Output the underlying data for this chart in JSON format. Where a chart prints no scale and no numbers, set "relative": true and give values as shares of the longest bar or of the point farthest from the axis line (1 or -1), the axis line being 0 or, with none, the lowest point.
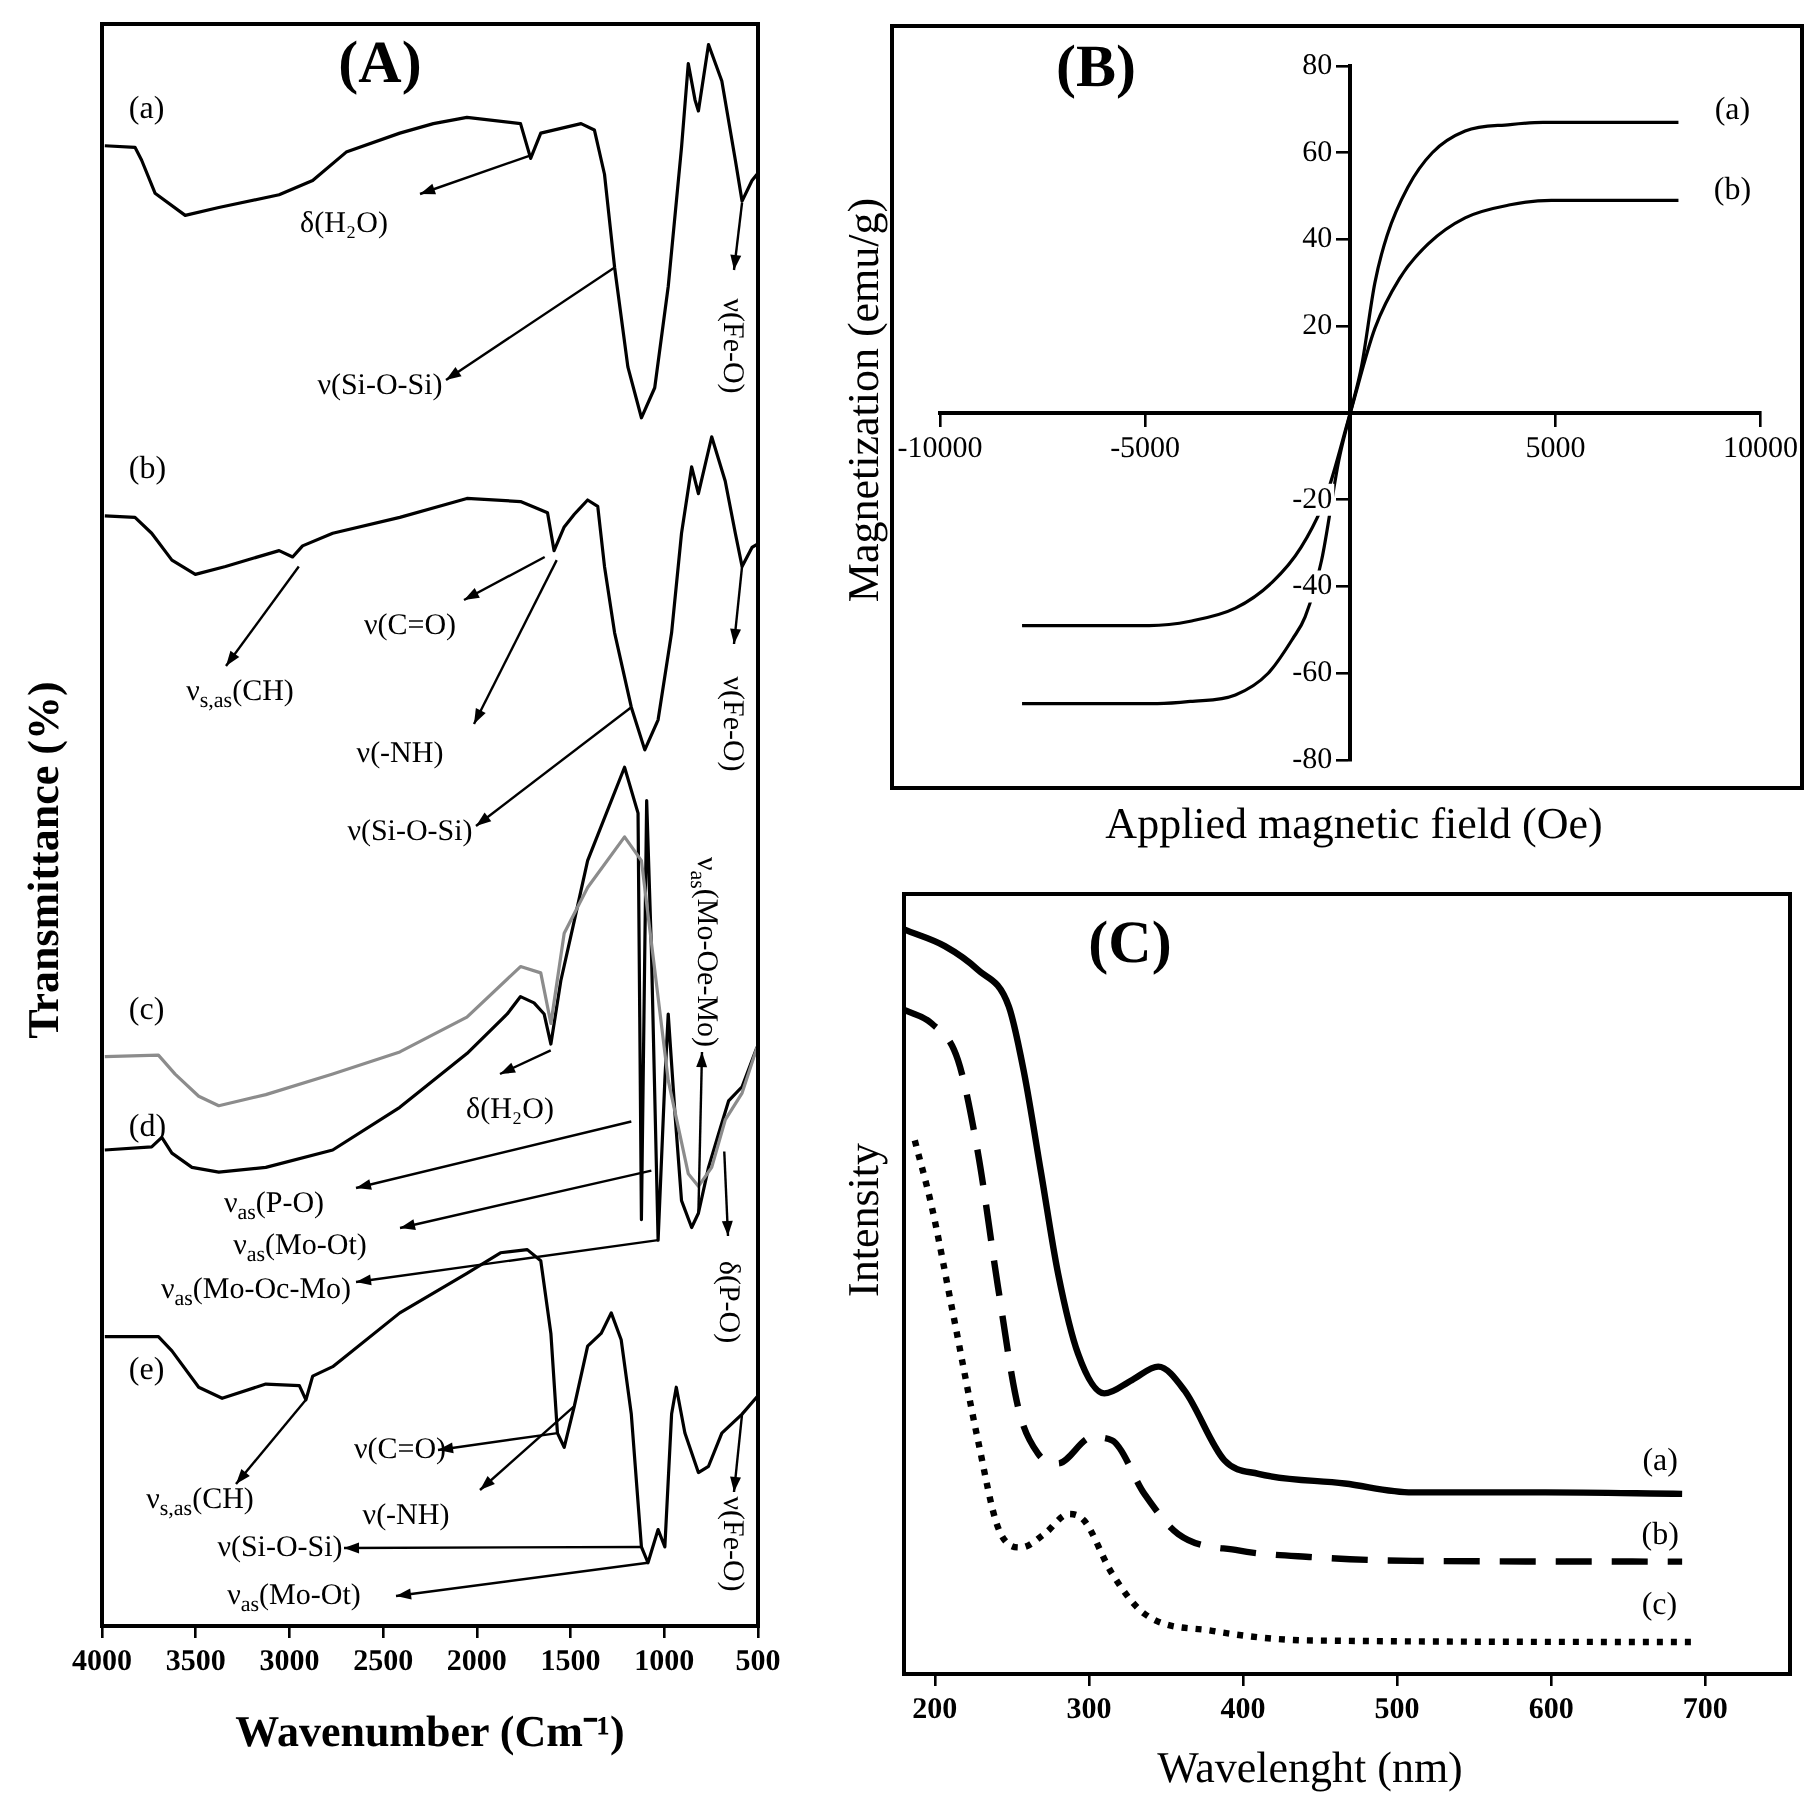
{
  "chart_data": [
    {
      "type": "line",
      "title": "(A)",
      "xlabel": "Wavenumber (Cm⁻¹)",
      "ylabel": "Transmittance (%)",
      "relative": true,
      "xlim": [
        4000,
        500
      ],
      "xticks": [
        4000,
        3500,
        3000,
        2500,
        2000,
        1500,
        1000,
        500
      ],
      "grid": false,
      "legend": false,
      "marker": "none",
      "series": [
        {
          "name": "(a)",
          "color": "#000000",
          "x": [
            3985,
            3824,
            3789,
            3717,
            3556,
            3377,
            3055,
            2876,
            2697,
            2411,
            2232,
            2053,
            1767,
            1713,
            1659,
            1444,
            1373,
            1319,
            1265,
            1194,
            1122,
            1051,
            979,
            908,
            872,
            836,
            818,
            764,
            693,
            621,
            585,
            532,
            505
          ],
          "values": [
            0.936,
            0.935,
            0.927,
            0.906,
            0.892,
            0.897,
            0.905,
            0.914,
            0.932,
            0.944,
            0.95,
            0.954,
            0.95,
            0.928,
            0.944,
            0.95,
            0.946,
            0.918,
            0.859,
            0.796,
            0.764,
            0.783,
            0.847,
            0.935,
            0.988,
            0.965,
            0.958,
            1.0,
            0.977,
            0.927,
            0.901,
            0.914,
            0.918
          ]
        },
        {
          "name": "(b)",
          "color": "#000000",
          "x": [
            3985,
            3824,
            3735,
            3627,
            3502,
            3341,
            3055,
            2983,
            2930,
            2769,
            2411,
            2053,
            1767,
            1623,
            1588,
            1534,
            1480,
            1409,
            1355,
            1319,
            1265,
            1176,
            1104,
            1033,
            961,
            908,
            854,
            818,
            747,
            675,
            621,
            585,
            532,
            505
          ],
          "values": [
            0.702,
            0.701,
            0.691,
            0.674,
            0.665,
            0.67,
            0.68,
            0.676,
            0.683,
            0.691,
            0.701,
            0.713,
            0.711,
            0.704,
            0.68,
            0.695,
            0.703,
            0.712,
            0.708,
            0.67,
            0.628,
            0.581,
            0.554,
            0.573,
            0.628,
            0.691,
            0.733,
            0.716,
            0.752,
            0.724,
            0.691,
            0.67,
            0.682,
            0.684
          ]
        },
        {
          "name": "(c)",
          "color": "#8c8c8c",
          "x": [
            3985,
            3699,
            3610,
            3484,
            3377,
            3126,
            2769,
            2411,
            2053,
            1767,
            1659,
            1605,
            1534,
            1409,
            1212,
            1122,
            979,
            872,
            818,
            747,
            675,
            585,
            505
          ],
          "values": [
            0.36,
            0.361,
            0.349,
            0.335,
            0.329,
            0.336,
            0.349,
            0.363,
            0.385,
            0.417,
            0.413,
            0.381,
            0.438,
            0.467,
            0.499,
            0.484,
            0.345,
            0.286,
            0.278,
            0.29,
            0.32,
            0.337,
            0.366
          ]
        },
        {
          "name": "(d)",
          "color": "#000000",
          "x": [
            3985,
            3735,
            3681,
            3627,
            3520,
            3377,
            3126,
            2769,
            2411,
            2053,
            1838,
            1767,
            1695,
            1641,
            1605,
            1552,
            1480,
            1409,
            1212,
            1140,
            1122,
            1094,
            1069,
            1033,
            997,
            979,
            943,
            908,
            854,
            818,
            764,
            711,
            657,
            585,
            505
          ],
          "values": [
            0.301,
            0.303,
            0.309,
            0.299,
            0.29,
            0.287,
            0.29,
            0.301,
            0.328,
            0.362,
            0.387,
            0.398,
            0.394,
            0.387,
            0.368,
            0.408,
            0.446,
            0.484,
            0.543,
            0.514,
            0.257,
            0.522,
            0.429,
            0.244,
            0.345,
            0.387,
            0.324,
            0.269,
            0.252,
            0.261,
            0.29,
            0.311,
            0.332,
            0.341,
            0.366
          ]
        },
        {
          "name": "(e)",
          "color": "#000000",
          "x": [
            3985,
            3699,
            3627,
            3484,
            3359,
            3126,
            2947,
            2912,
            2876,
            2769,
            2411,
            2053,
            1874,
            1731,
            1659,
            1605,
            1570,
            1534,
            1480,
            1409,
            1337,
            1283,
            1230,
            1176,
            1122,
            1087,
            1033,
            997,
            961,
            936,
            890,
            818,
            764,
            693,
            585,
            505
          ],
          "values": [
            0.183,
            0.183,
            0.174,
            0.151,
            0.144,
            0.153,
            0.152,
            0.143,
            0.158,
            0.164,
            0.198,
            0.223,
            0.236,
            0.238,
            0.231,
            0.185,
            0.122,
            0.113,
            0.139,
            0.177,
            0.185,
            0.198,
            0.181,
            0.134,
            0.05,
            0.04,
            0.061,
            0.05,
            0.134,
            0.151,
            0.122,
            0.097,
            0.101,
            0.122,
            0.134,
            0.145
          ]
        }
      ],
      "annotations": [
        {
          "text": "δ(H₂O)",
          "x": 1713,
          "y": 0.93
        },
        {
          "text": "ν(Si-O-Si)",
          "x": 1265,
          "y": 0.859
        },
        {
          "text": "ν(Fe-O)",
          "x": 585,
          "y": 0.9
        },
        {
          "text": "ν$_{s,as}$(CH)",
          "x": 2950,
          "y": 0.67
        },
        {
          "text": "ν(C=O)",
          "x": 1638,
          "y": 0.676
        },
        {
          "text": "ν(-NH)",
          "x": 1574,
          "y": 0.674
        },
        {
          "text": "ν(Si-O-Si)",
          "x": 1176,
          "y": 0.581
        },
        {
          "text": "ν(Fe-O)",
          "x": 585,
          "y": 0.67
        },
        {
          "text": "ν$_{as}$(Mo-Oe-Mo)",
          "x": 818,
          "y": 0.261
        },
        {
          "text": "δ(H₂O)",
          "x": 1606,
          "y": 0.364
        },
        {
          "text": "ν$_{as}$(P-O)",
          "x": 1176,
          "y": 0.319
        },
        {
          "text": "ν$_{as}$(Mo-Ot)",
          "x": 1069,
          "y": 0.288
        },
        {
          "text": "ν$_{as}$(Mo-Oc-Mo)",
          "x": 1033,
          "y": 0.244
        },
        {
          "text": "δ(P-O)",
          "x": 680,
          "y": 0.3
        },
        {
          "text": "ν$_{s,as}$(CH)",
          "x": 2912,
          "y": 0.143
        },
        {
          "text": "ν(C=O)",
          "x": 1570,
          "y": 0.122
        },
        {
          "text": "ν(-NH)",
          "x": 1480,
          "y": 0.139
        },
        {
          "text": "ν(Si-O-Si)",
          "x": 1122,
          "y": 0.05
        },
        {
          "text": "ν$_{as}$(Mo-Ot)",
          "x": 1087,
          "y": 0.04
        },
        {
          "text": "ν(Fe-O)",
          "x": 585,
          "y": 0.134
        }
      ]
    },
    {
      "type": "line",
      "title": "(B)",
      "xlabel": "Applied magnetic field (Oe)",
      "ylabel": "Magnetization (emu/g)",
      "xlim": [
        -10000,
        10000
      ],
      "xticks": [
        -10000,
        -5000,
        5000,
        10000
      ],
      "ylim": [
        -80,
        80
      ],
      "yticks": [
        -80,
        -60,
        -40,
        -20,
        20,
        40,
        60,
        80
      ],
      "grid": false,
      "legend": false,
      "marker": "none",
      "series": [
        {
          "name": "(a)",
          "color": "#000000",
          "x": [
            -8000,
            -4700,
            -3900,
            -2800,
            -2000,
            -1400,
            -1100,
            -700,
            -280,
            0,
            280,
            600,
            900,
            1400,
            2000,
            2800,
            3900,
            4700,
            8000
          ],
          "values": [
            -67,
            -67,
            -66.5,
            -65,
            -60,
            -52,
            -47,
            -34,
            -11,
            0,
            11,
            30,
            41,
            52,
            60,
            65,
            66.5,
            67,
            67
          ]
        },
        {
          "name": "(b)",
          "color": "#000000",
          "x": [
            -8000,
            -4900,
            -3900,
            -2800,
            -1900,
            -1200,
            -600,
            0,
            600,
            1200,
            1900,
            2800,
            3900,
            4900,
            8000
          ],
          "values": [
            -49,
            -49,
            -48,
            -45,
            -39,
            -31,
            -19.5,
            0,
            19.5,
            31,
            39,
            45,
            48,
            49,
            49
          ]
        }
      ]
    },
    {
      "type": "line",
      "title": "(C)",
      "xlabel": "Wavelenght (nm)",
      "ylabel": "Intensity",
      "relative": true,
      "xlim": [
        180,
        755
      ],
      "xticks": [
        200,
        300,
        400,
        500,
        600,
        700
      ],
      "grid": false,
      "legend": false,
      "marker": "none",
      "series": [
        {
          "name": "(a)",
          "color": "#000000",
          "line_style": "solid",
          "x": [
            180.5,
            206.5,
            228,
            248,
            258,
            269,
            280,
            293,
            310,
            328,
            345,
            362,
            388,
            410,
            466,
            510,
            596,
            685
          ],
          "values": [
            1.0,
            0.978,
            0.946,
            0.897,
            0.807,
            0.673,
            0.538,
            0.43,
            0.377,
            0.395,
            0.413,
            0.381,
            0.287,
            0.269,
            0.256,
            0.244,
            0.244,
            0.242
          ]
        },
        {
          "name": "(b)",
          "color": "#000000",
          "line_style": "dashed",
          "x": [
            180.5,
            198,
            215,
            228,
            241,
            254,
            267,
            280,
            302,
            315,
            336,
            358,
            397,
            445,
            510,
            685
          ],
          "values": [
            0.892,
            0.874,
            0.825,
            0.7,
            0.52,
            0.359,
            0.296,
            0.283,
            0.318,
            0.314,
            0.242,
            0.188,
            0.166,
            0.157,
            0.152,
            0.151
          ]
        },
        {
          "name": "(c)",
          "color": "#000000",
          "line_style": "dotted",
          "x": [
            187,
            198,
            211,
            228,
            241,
            256,
            271,
            287,
            297,
            315,
            336,
            380,
            445,
            691
          ],
          "values": [
            0.717,
            0.628,
            0.493,
            0.314,
            0.197,
            0.17,
            0.188,
            0.215,
            0.206,
            0.135,
            0.081,
            0.058,
            0.045,
            0.043
          ]
        }
      ]
    }
  ]
}
